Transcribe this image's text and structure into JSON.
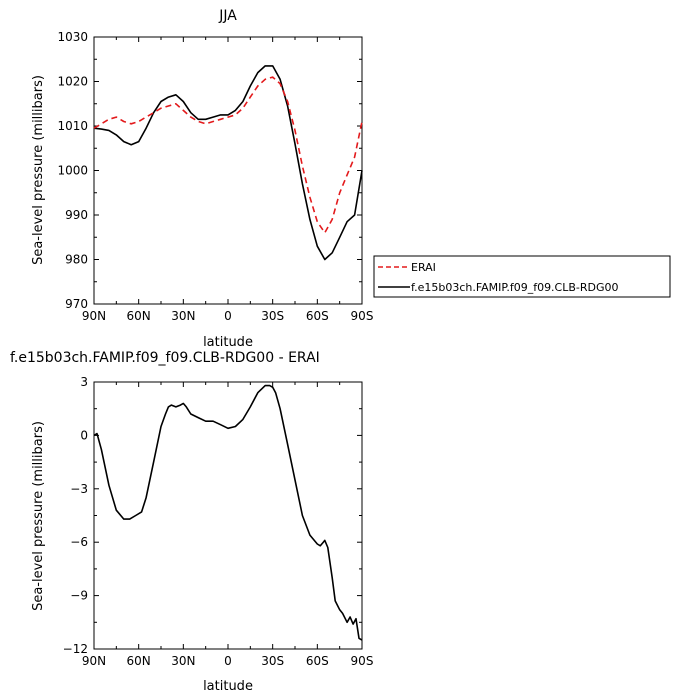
{
  "chart_data": [
    {
      "type": "line",
      "title": "JJA",
      "xlabel": "latitude",
      "ylabel": "Sea-level pressure (millibars)",
      "xlim": [
        90,
        -90
      ],
      "ylim": [
        970,
        1030
      ],
      "x_ticks": [
        {
          "value": 90,
          "label": "90N"
        },
        {
          "value": 60,
          "label": "60N"
        },
        {
          "value": 30,
          "label": "30N"
        },
        {
          "value": 0,
          "label": "0"
        },
        {
          "value": -30,
          "label": "30S"
        },
        {
          "value": -60,
          "label": "60S"
        },
        {
          "value": -90,
          "label": "90S"
        }
      ],
      "y_ticks": [
        970,
        980,
        990,
        1000,
        1010,
        1020,
        1030
      ],
      "legend_position": "right",
      "x": [
        90,
        85,
        80,
        75,
        70,
        65,
        60,
        55,
        50,
        45,
        40,
        35,
        30,
        25,
        20,
        15,
        10,
        5,
        0,
        -5,
        -10,
        -15,
        -20,
        -25,
        -30,
        -35,
        -40,
        -45,
        -50,
        -55,
        -60,
        -65,
        -70,
        -75,
        -80,
        -85,
        -90
      ],
      "series": [
        {
          "name": "ERAI",
          "color": "#e31a1c",
          "dash": "dashed",
          "values": [
            1009.5,
            1010.5,
            1011.5,
            1012,
            1011,
            1010.5,
            1011,
            1012,
            1013,
            1014,
            1014.5,
            1015,
            1013.5,
            1012,
            1011,
            1010.5,
            1011,
            1011.5,
            1012,
            1012.5,
            1014,
            1016.5,
            1019,
            1020.5,
            1021,
            1019.5,
            1015.5,
            1009,
            1001,
            994,
            988.5,
            986,
            989,
            995,
            999,
            1003,
            1011
          ]
        },
        {
          "name": "f.e15b03ch.FAMIP.f09_f09.CLB-RDG00",
          "color": "#000000",
          "dash": "solid",
          "values": [
            1009.5,
            1009.3,
            1009,
            1008,
            1006.5,
            1005.8,
            1006.5,
            1009.5,
            1013,
            1015.5,
            1016.5,
            1017,
            1015.5,
            1013,
            1011.5,
            1011.5,
            1012,
            1012.5,
            1012.5,
            1013.5,
            1015.5,
            1019,
            1022,
            1023.5,
            1023.5,
            1020.5,
            1014.5,
            1006,
            997,
            989,
            983,
            980,
            981.5,
            985,
            988.5,
            990,
            1000
          ]
        }
      ]
    },
    {
      "type": "line",
      "title": "f.e15b03ch.FAMIP.f09_f09.CLB-RDG00 - ERAI",
      "xlabel": "latitude",
      "ylabel": "Sea-level pressure (millibars)",
      "xlim": [
        90,
        -90
      ],
      "ylim": [
        -12,
        3
      ],
      "x_ticks": [
        {
          "value": 90,
          "label": "90N"
        },
        {
          "value": 60,
          "label": "60N"
        },
        {
          "value": 30,
          "label": "30N"
        },
        {
          "value": 0,
          "label": "0"
        },
        {
          "value": -30,
          "label": "30S"
        },
        {
          "value": -60,
          "label": "60S"
        },
        {
          "value": -90,
          "label": "90S"
        }
      ],
      "y_ticks": [
        3,
        0,
        -3,
        -6,
        -9,
        -12
      ],
      "x": [
        90,
        88,
        85,
        80,
        75,
        70,
        66,
        62,
        58,
        55,
        50,
        45,
        42,
        40,
        38,
        35,
        32,
        30,
        28,
        25,
        20,
        15,
        10,
        5,
        0,
        -5,
        -10,
        -15,
        -20,
        -25,
        -28,
        -30,
        -32,
        -35,
        -40,
        -45,
        -50,
        -55,
        -60,
        -62,
        -64,
        -65,
        -67,
        -70,
        -72,
        -75,
        -77,
        -80,
        -82,
        -84,
        -86,
        -88,
        -90
      ],
      "series": [
        {
          "name": "",
          "color": "#000000",
          "dash": "solid",
          "values": [
            0,
            0.1,
            -0.8,
            -2.8,
            -4.2,
            -4.7,
            -4.7,
            -4.5,
            -4.3,
            -3.5,
            -1.5,
            0.5,
            1.2,
            1.6,
            1.7,
            1.6,
            1.7,
            1.8,
            1.6,
            1.2,
            1.0,
            0.8,
            0.8,
            0.6,
            0.4,
            0.5,
            0.9,
            1.6,
            2.4,
            2.8,
            2.8,
            2.7,
            2.4,
            1.5,
            -0.5,
            -2.5,
            -4.5,
            -5.6,
            -6.1,
            -6.2,
            -6.0,
            -5.9,
            -6.3,
            -8.0,
            -9.3,
            -9.8,
            -10.0,
            -10.5,
            -10.2,
            -10.6,
            -10.3,
            -11.4,
            -11.5
          ]
        }
      ]
    }
  ]
}
